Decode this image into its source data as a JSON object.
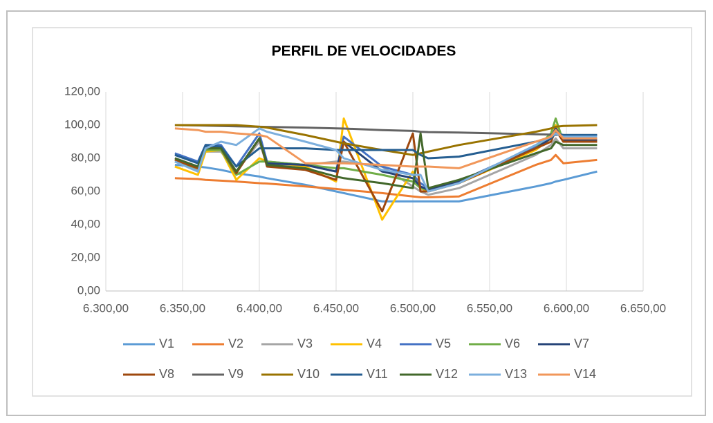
{
  "chart_data": {
    "type": "line",
    "title": "PERFIL DE VELOCIDADES",
    "x": [
      6345,
      6360,
      6365,
      6375,
      6385,
      6400,
      6405,
      6430,
      6450,
      6455,
      6480,
      6500,
      6505,
      6510,
      6530,
      6580,
      6590,
      6593,
      6598,
      6620
    ],
    "series": [
      {
        "name": "V1",
        "color": "#5b9bd5",
        "values": [
          76,
          75,
          74.5,
          73,
          71,
          69,
          68,
          64,
          60,
          59,
          54,
          54,
          54,
          54,
          54,
          63,
          65,
          66,
          67,
          72
        ]
      },
      {
        "name": "V2",
        "color": "#ed7d31",
        "values": [
          68,
          67.5,
          67,
          66.5,
          66,
          65,
          64.8,
          63,
          61.5,
          61,
          59,
          57,
          56.5,
          56.5,
          57,
          76,
          79,
          82,
          77,
          79
        ]
      },
      {
        "name": "V3",
        "color": "#a5a5a5",
        "values": [
          78,
          73,
          84,
          84,
          72,
          90,
          76,
          76,
          78,
          78,
          75,
          63,
          60,
          58,
          62,
          82,
          88,
          92,
          86,
          86
        ]
      },
      {
        "name": "V4",
        "color": "#ffc000",
        "values": [
          75,
          70,
          84,
          85,
          67,
          80,
          78,
          75,
          66,
          104,
          43,
          72,
          62,
          60,
          65,
          85,
          92,
          100,
          90,
          91
        ]
      },
      {
        "name": "V5",
        "color": "#4472c4",
        "values": [
          83,
          78,
          88,
          88,
          75,
          95,
          78,
          76,
          72,
          93,
          75,
          70,
          65,
          62,
          66,
          87,
          93,
          98,
          92,
          92
        ]
      },
      {
        "name": "V6",
        "color": "#70ad47",
        "values": [
          78,
          74,
          85,
          85,
          70,
          78,
          78,
          76,
          74,
          74,
          70,
          66,
          62,
          61,
          66,
          86,
          95,
          104,
          90,
          90
        ]
      },
      {
        "name": "V7",
        "color": "#264478",
        "values": [
          80,
          75,
          87,
          86,
          72,
          92,
          77,
          76,
          72,
          90,
          72,
          68,
          63,
          61,
          66,
          86,
          92,
          98,
          91,
          91
        ]
      },
      {
        "name": "V8",
        "color": "#9e480e",
        "values": [
          79,
          74,
          86,
          86,
          71,
          92,
          75,
          73,
          67,
          90,
          48,
          95,
          60,
          60,
          65,
          86,
          90,
          97,
          90,
          90
        ]
      },
      {
        "name": "V9",
        "color": "#636363",
        "values": [
          100,
          99.8,
          99.7,
          99.5,
          99.3,
          99,
          98.9,
          98.5,
          98,
          97.9,
          97,
          96.5,
          96,
          95.8,
          95.5,
          94.5,
          94.3,
          94.2,
          94.1,
          94
        ]
      },
      {
        "name": "V10",
        "color": "#997300",
        "values": [
          100,
          100,
          100,
          100,
          100,
          99,
          98.5,
          94,
          90,
          89,
          85,
          82,
          83,
          84,
          88,
          96,
          98,
          99,
          99.5,
          100
        ]
      },
      {
        "name": "V11",
        "color": "#255e91",
        "values": [
          82,
          77,
          88,
          87,
          75,
          86,
          86,
          86,
          85,
          85,
          85,
          85,
          82,
          80,
          81,
          90,
          92,
          95,
          94,
          94
        ]
      },
      {
        "name": "V12",
        "color": "#43682b",
        "values": [
          80,
          75,
          86,
          86,
          72,
          92,
          76,
          74,
          69,
          68,
          65,
          62,
          95,
          62,
          67,
          83,
          86,
          90,
          88,
          88
        ]
      },
      {
        "name": "V13",
        "color": "#7cafdd",
        "values": [
          78,
          72,
          86,
          90,
          88,
          98,
          96,
          90,
          85,
          80,
          73,
          70,
          70,
          60,
          65,
          88,
          93,
          95,
          93,
          93
        ]
      },
      {
        "name": "V14",
        "color": "#f1975a",
        "values": [
          98,
          97,
          96,
          96,
          95,
          94,
          93,
          77,
          77,
          77,
          76,
          75,
          75,
          75,
          74,
          90,
          93,
          97,
          92,
          92
        ]
      }
    ],
    "xlim": [
      6300,
      6650
    ],
    "xticks": [
      {
        "value": 6300,
        "label": "6.300,00"
      },
      {
        "value": 6350,
        "label": "6.350,00"
      },
      {
        "value": 6400,
        "label": "6.400,00"
      },
      {
        "value": 6450,
        "label": "6.450,00"
      },
      {
        "value": 6500,
        "label": "6.500,00"
      },
      {
        "value": 6550,
        "label": "6.550,00"
      },
      {
        "value": 6600,
        "label": "6.600,00"
      },
      {
        "value": 6650,
        "label": "6.650,00"
      }
    ],
    "ylim": [
      0,
      120
    ],
    "yticks": [
      {
        "value": 0,
        "label": "0,00"
      },
      {
        "value": 20,
        "label": "20,00"
      },
      {
        "value": 40,
        "label": "40,00"
      },
      {
        "value": 60,
        "label": "60,00"
      },
      {
        "value": 80,
        "label": "80,00"
      },
      {
        "value": 100,
        "label": "100,00"
      },
      {
        "value": 120,
        "label": "120,00"
      }
    ],
    "grid": "x",
    "legend": "bottom"
  }
}
